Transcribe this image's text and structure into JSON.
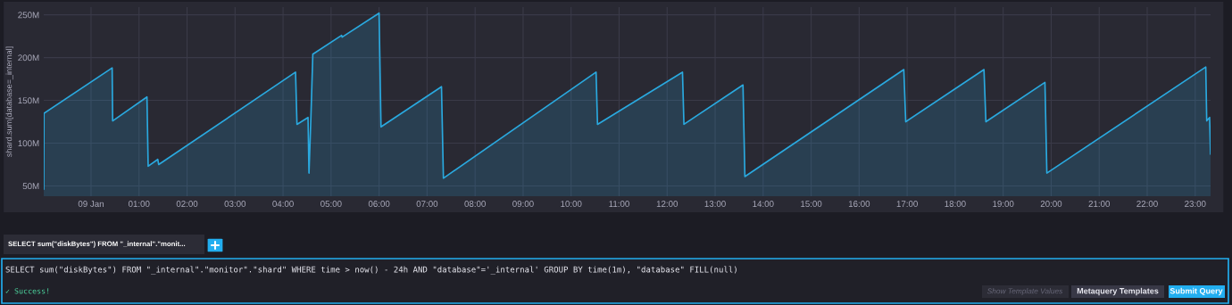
{
  "chart_data": {
    "type": "area",
    "ylabel": "shard.sum[database=_internal]",
    "x": [
      -0.985,
      -0.98,
      0.44,
      0.45,
      1.165,
      1.19,
      1.39,
      1.41,
      4.26,
      4.29,
      4.52,
      4.54,
      4.58,
      4.62,
      5.22,
      5.23,
      6.0,
      6.04,
      7.3,
      7.34,
      10.52,
      10.55,
      12.32,
      12.35,
      13.58,
      13.62,
      16.93,
      16.97,
      18.6,
      18.64,
      19.87,
      19.91,
      23.22,
      23.24,
      23.3,
      23.32
    ],
    "series": [
      {
        "color": "#2aa9df",
        "values": [
          46,
          135,
          188,
          126,
          154,
          73,
          81,
          75,
          183,
          122,
          130,
          65,
          130,
          204,
          226,
          224,
          252,
          119,
          166,
          59,
          183,
          122,
          183,
          122,
          168,
          61,
          186,
          125,
          186,
          125,
          171,
          65,
          189,
          126,
          130,
          87
        ]
      }
    ],
    "xlim": [
      -0.985,
      23.32
    ],
    "ylim": [
      38,
      259
    ],
    "xticks": [
      {
        "value": 0,
        "label": "09 Jan"
      },
      {
        "value": 1,
        "label": "01:00"
      },
      {
        "value": 2,
        "label": "02:00"
      },
      {
        "value": 3,
        "label": "03:00"
      },
      {
        "value": 4,
        "label": "04:00"
      },
      {
        "value": 5,
        "label": "05:00"
      },
      {
        "value": 6,
        "label": "06:00"
      },
      {
        "value": 7,
        "label": "07:00"
      },
      {
        "value": 8,
        "label": "08:00"
      },
      {
        "value": 9,
        "label": "09:00"
      },
      {
        "value": 10,
        "label": "10:00"
      },
      {
        "value": 11,
        "label": "11:00"
      },
      {
        "value": 12,
        "label": "12:00"
      },
      {
        "value": 13,
        "label": "13:00"
      },
      {
        "value": 14,
        "label": "14:00"
      },
      {
        "value": 15,
        "label": "15:00"
      },
      {
        "value": 16,
        "label": "16:00"
      },
      {
        "value": 17,
        "label": "17:00"
      },
      {
        "value": 18,
        "label": "18:00"
      },
      {
        "value": 19,
        "label": "19:00"
      },
      {
        "value": 20,
        "label": "20:00"
      },
      {
        "value": 21,
        "label": "21:00"
      },
      {
        "value": 22,
        "label": "22:00"
      },
      {
        "value": 23,
        "label": "23:00"
      }
    ],
    "yticks": [
      {
        "value": 50,
        "label": "50M"
      },
      {
        "value": 100,
        "label": "100M"
      },
      {
        "value": 150,
        "label": "150M"
      },
      {
        "value": 200,
        "label": "200M"
      },
      {
        "value": 250,
        "label": "250M"
      }
    ],
    "grid": true,
    "marker": "none",
    "line_style": "solid",
    "annotations": [
      "SELECT sum(\"diskBytes\") FROM \"_internal\".\"monit...",
      "SELECT sum(\"diskBytes\") FROM \"_internal\".\"monitor\".\"shard\" WHERE time > now() - 24h AND \"database\"='_internal' GROUP BY time(1m), \"database\" FILL(null)",
      "✓ Success!",
      "Show Template Values",
      "Metaquery Templates",
      "Submit Query"
    ]
  }
}
